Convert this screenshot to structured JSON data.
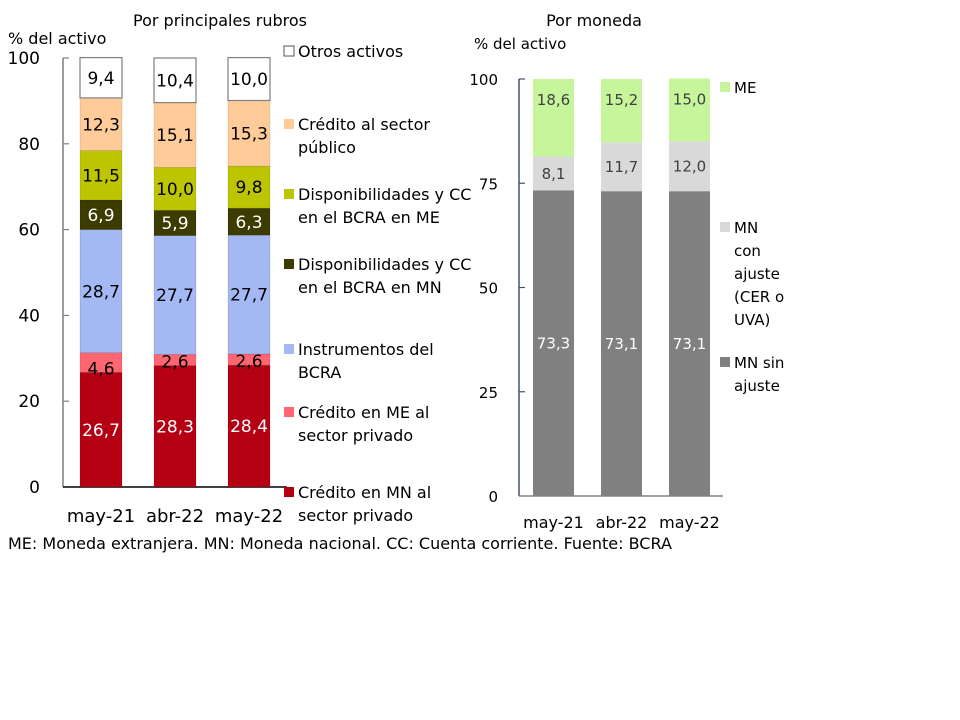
{
  "footnote": "ME: Moneda extranjera. MN: Moneda nacional. CC: Cuenta corriente. Fuente: BCRA",
  "chart_data": [
    {
      "type": "bar",
      "stacked": true,
      "title": "Por principales rubros",
      "ylabel": "% del activo",
      "xlabel": "",
      "ylim": [
        0,
        100
      ],
      "yticks": [
        0,
        20,
        40,
        60,
        80,
        100
      ],
      "categories": [
        "may-21",
        "abr-22",
        "may-22"
      ],
      "legend_position": "right",
      "series": [
        {
          "name": "Crédito en MN al sector privado",
          "legend_lines": [
            "Crédito en MN al",
            "sector privado"
          ],
          "color": "#B50014",
          "label_color": "#ffffff",
          "values": [
            26.7,
            28.3,
            28.4
          ],
          "labels": [
            "26,7",
            "28,3",
            "28,4"
          ]
        },
        {
          "name": "Crédito en ME al sector privado",
          "legend_lines": [
            "Crédito en ME al",
            "sector privado"
          ],
          "color": "#FF6672",
          "label_color": "#000000",
          "values": [
            4.6,
            2.6,
            2.6
          ],
          "labels": [
            "4,6",
            "2,6",
            "2,6"
          ]
        },
        {
          "name": "Instrumentos del BCRA",
          "legend_lines": [
            "Instrumentos del",
            "BCRA"
          ],
          "color": "#A4B8F4",
          "label_color": "#000000",
          "values": [
            28.7,
            27.7,
            27.7
          ],
          "labels": [
            "28,7",
            "27,7",
            "27,7"
          ]
        },
        {
          "name": "Disponibilidades y CC en el BCRA en MN",
          "legend_lines": [
            "Disponibilidades y CC",
            "en el BCRA en MN"
          ],
          "color": "#3C3C00",
          "label_color": "#ffffff",
          "values": [
            6.9,
            5.9,
            6.3
          ],
          "labels": [
            "6,9",
            "5,9",
            "6,3"
          ]
        },
        {
          "name": "Disponibilidades y CC en el BCRA en ME",
          "legend_lines": [
            "Disponibilidades y CC",
            "en el BCRA en ME"
          ],
          "color": "#BDC400",
          "label_color": "#000000",
          "values": [
            11.5,
            10.0,
            9.8
          ],
          "labels": [
            "11,5",
            "10,0",
            "9,8"
          ]
        },
        {
          "name": "Crédito al sector público",
          "legend_lines": [
            "Crédito al sector",
            "público"
          ],
          "color": "#FFCC99",
          "label_color": "#000000",
          "values": [
            12.3,
            15.1,
            15.3
          ],
          "labels": [
            "12,3",
            "15,1",
            "15,3"
          ]
        },
        {
          "name": "Otros activos",
          "legend_lines": [
            "Otros activos"
          ],
          "color": "#FFFFFF",
          "label_color": "#000000",
          "values": [
            9.4,
            10.4,
            10.0
          ],
          "labels": [
            "9,4",
            "10,4",
            "10,0"
          ]
        }
      ]
    },
    {
      "type": "bar",
      "stacked": true,
      "title": "Por moneda",
      "ylabel": "% del activo",
      "xlabel": "",
      "ylim": [
        0,
        100
      ],
      "yticks": [
        0,
        25,
        50,
        75,
        100
      ],
      "categories": [
        "may-21",
        "abr-22",
        "may-22"
      ],
      "legend_position": "right",
      "series": [
        {
          "name": "MN sin ajuste",
          "legend_lines": [
            "MN sin",
            "ajuste"
          ],
          "color": "#808080",
          "label_color": "#ffffff",
          "values": [
            73.3,
            73.1,
            73.1
          ],
          "labels": [
            "73,3",
            "73,1",
            "73,1"
          ]
        },
        {
          "name": "MN con ajuste (CER o UVA)",
          "legend_lines": [
            "MN",
            "con",
            "ajuste",
            "(CER o",
            "UVA)"
          ],
          "color": "#D9D9D9",
          "label_color": "#404040",
          "values": [
            8.1,
            11.7,
            12.0
          ],
          "labels": [
            "8,1",
            "11,7",
            "12,0"
          ]
        },
        {
          "name": "ME",
          "legend_lines": [
            "ME"
          ],
          "color": "#C6F59C",
          "label_color": "#404040",
          "values": [
            18.6,
            15.2,
            15.0
          ],
          "labels": [
            "18,6",
            "15,2",
            "15,0"
          ]
        }
      ]
    }
  ]
}
